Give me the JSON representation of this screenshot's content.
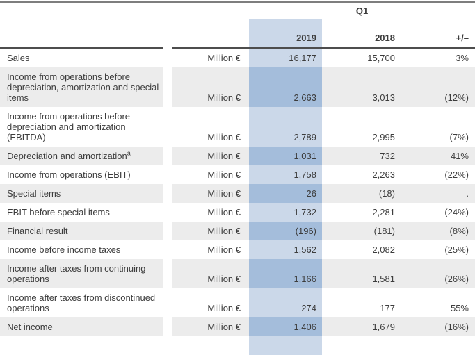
{
  "header": {
    "group_label": "Q1",
    "columns": {
      "y2019": "2019",
      "y2018": "2018",
      "change": "+/–"
    }
  },
  "rows": [
    {
      "label": "Sales",
      "sup": "",
      "unit": "Million €",
      "y2019": "16,177",
      "y2018": "15,700",
      "change": "3%",
      "shaded": false
    },
    {
      "label": "Income from operations before depreciation, amortization and special items",
      "sup": "",
      "unit": "Million €",
      "y2019": "2,663",
      "y2018": "3,013",
      "change": "(12%)",
      "shaded": true
    },
    {
      "label": "Income from operations before depreciation and amortization (EBITDA)",
      "sup": "",
      "unit": "Million €",
      "y2019": "2,789",
      "y2018": "2,995",
      "change": "(7%)",
      "shaded": false
    },
    {
      "label": "Depreciation and amortization",
      "sup": "a",
      "unit": "Million €",
      "y2019": "1,031",
      "y2018": "732",
      "change": "41%",
      "shaded": true
    },
    {
      "label": "Income from operations (EBIT)",
      "sup": "",
      "unit": "Million €",
      "y2019": "1,758",
      "y2018": "2,263",
      "change": "(22%)",
      "shaded": false
    },
    {
      "label": "Special items",
      "sup": "",
      "unit": "Million €",
      "y2019": "26",
      "y2018": "(18)",
      "change": ".",
      "shaded": true
    },
    {
      "label": "EBIT before special items",
      "sup": "",
      "unit": "Million €",
      "y2019": "1,732",
      "y2018": "2,281",
      "change": "(24%)",
      "shaded": false
    },
    {
      "label": "Financial result",
      "sup": "",
      "unit": "Million €",
      "y2019": "(196)",
      "y2018": "(181)",
      "change": "(8%)",
      "shaded": true
    },
    {
      "label": "Income before income taxes",
      "sup": "",
      "unit": "Million €",
      "y2019": "1,562",
      "y2018": "2,082",
      "change": "(25%)",
      "shaded": false
    },
    {
      "label": "Income after taxes from continuing operations",
      "sup": "",
      "unit": "Million €",
      "y2019": "1,166",
      "y2018": "1,581",
      "change": "(26%)",
      "shaded": true
    },
    {
      "label": "Income after taxes from discontinued operations",
      "sup": "",
      "unit": "Million €",
      "y2019": "274",
      "y2018": "177",
      "change": "55%",
      "shaded": false
    },
    {
      "label": "Net income",
      "sup": "",
      "unit": "Million €",
      "y2019": "1,406",
      "y2018": "1,679",
      "change": "(16%)",
      "shaded": true
    }
  ],
  "colors": {
    "shade_row": "#ececec",
    "highlight_light": "#cbd8e9",
    "highlight_dark": "#a4bddb",
    "top_border": "#7e7e7e",
    "header_rule": "#4d4d4d",
    "text": "#3c3c3c"
  }
}
